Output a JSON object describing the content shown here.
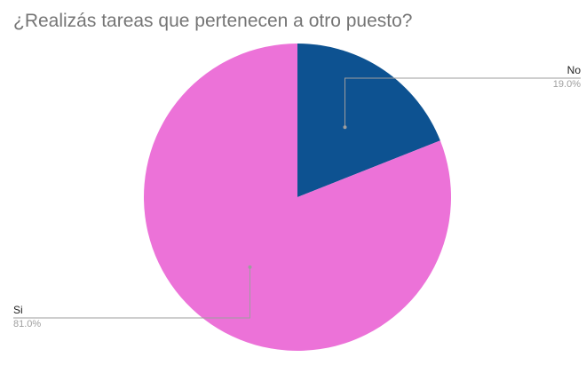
{
  "chart_data": {
    "type": "pie",
    "title": "¿Realizás tareas que pertenecen a otro puesto?",
    "slices": [
      {
        "label": "No",
        "value": 19.0,
        "value_label": "19.0%",
        "color": "#0d5291"
      },
      {
        "label": "Si",
        "value": 81.0,
        "value_label": "81.0%",
        "color": "#ec72d8"
      }
    ],
    "start_angle": "12 o'clock",
    "direction": "clockwise",
    "legend": "none",
    "label_style": "leader lines",
    "leader_color": "#9e9e9e",
    "background": "#ffffff"
  }
}
